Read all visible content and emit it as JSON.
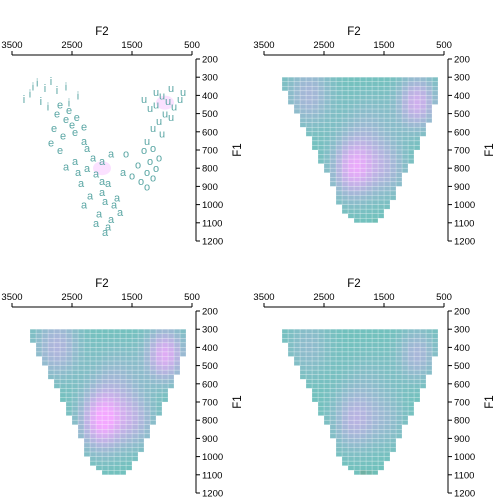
{
  "chart_data": {
    "type": "scatter",
    "layout": "2x2 grid",
    "x_axis": {
      "label": "F2",
      "position": "top",
      "reversed": true,
      "range": [
        3500,
        500
      ],
      "ticks": [
        3500,
        2500,
        1500,
        500
      ]
    },
    "y_axis": {
      "label": "F1",
      "position": "right",
      "reversed": true,
      "range": [
        1200,
        200
      ],
      "ticks": [
        200,
        300,
        400,
        500,
        600,
        700,
        800,
        900,
        1000,
        1100,
        1200
      ]
    },
    "colors": {
      "points": "#5aa6a4",
      "base_fill": "#6fc2bc",
      "edge_fill": "#6f9b86",
      "peak_fill": "#f3a8ff",
      "grid": "#ffffff"
    },
    "scatter_points": [
      {
        "label": "i",
        "x": 3080,
        "y": 330
      },
      {
        "label": "i",
        "x": 2950,
        "y": 360
      },
      {
        "label": "i",
        "x": 3200,
        "y": 390
      },
      {
        "label": "i",
        "x": 2850,
        "y": 320
      },
      {
        "label": "i",
        "x": 2750,
        "y": 370
      },
      {
        "label": "i",
        "x": 3020,
        "y": 430
      },
      {
        "label": "i",
        "x": 2600,
        "y": 350
      },
      {
        "label": "i",
        "x": 2400,
        "y": 400
      },
      {
        "label": "i",
        "x": 3300,
        "y": 420
      },
      {
        "label": "i",
        "x": 2900,
        "y": 460
      },
      {
        "label": "i",
        "x": 2550,
        "y": 440
      },
      {
        "label": "i",
        "x": 3150,
        "y": 350
      },
      {
        "label": "e",
        "x": 2750,
        "y": 500
      },
      {
        "label": "e",
        "x": 2600,
        "y": 530
      },
      {
        "label": "e",
        "x": 2800,
        "y": 580
      },
      {
        "label": "e",
        "x": 2500,
        "y": 560
      },
      {
        "label": "e",
        "x": 2700,
        "y": 450
      },
      {
        "label": "e",
        "x": 2450,
        "y": 600
      },
      {
        "label": "e",
        "x": 2650,
        "y": 620
      },
      {
        "label": "e",
        "x": 2550,
        "y": 480
      },
      {
        "label": "e",
        "x": 2850,
        "y": 660
      },
      {
        "label": "e",
        "x": 2300,
        "y": 570
      },
      {
        "label": "e",
        "x": 2420,
        "y": 520
      },
      {
        "label": "e",
        "x": 2700,
        "y": 700
      },
      {
        "label": "a",
        "x": 2250,
        "y": 800
      },
      {
        "label": "a",
        "x": 2100,
        "y": 830
      },
      {
        "label": "a",
        "x": 2350,
        "y": 880
      },
      {
        "label": "a",
        "x": 2000,
        "y": 870
      },
      {
        "label": "a",
        "x": 2200,
        "y": 950
      },
      {
        "label": "a",
        "x": 1950,
        "y": 980
      },
      {
        "label": "a",
        "x": 1800,
        "y": 1000
      },
      {
        "label": "a",
        "x": 2050,
        "y": 1050
      },
      {
        "label": "a",
        "x": 1850,
        "y": 1080
      },
      {
        "label": "a",
        "x": 1900,
        "y": 1120
      },
      {
        "label": "a",
        "x": 2400,
        "y": 820
      },
      {
        "label": "a",
        "x": 2150,
        "y": 740
      },
      {
        "label": "a",
        "x": 1700,
        "y": 1040
      },
      {
        "label": "a",
        "x": 2300,
        "y": 1000
      },
      {
        "label": "a",
        "x": 2000,
        "y": 930
      },
      {
        "label": "a",
        "x": 2100,
        "y": 1100
      },
      {
        "label": "a",
        "x": 1750,
        "y": 960
      },
      {
        "label": "a",
        "x": 2450,
        "y": 760
      },
      {
        "label": "a",
        "x": 2600,
        "y": 790
      },
      {
        "label": "a",
        "x": 2250,
        "y": 690
      },
      {
        "label": "a",
        "x": 2000,
        "y": 760
      },
      {
        "label": "a",
        "x": 1900,
        "y": 880
      },
      {
        "label": "a",
        "x": 1850,
        "y": 720
      },
      {
        "label": "a",
        "x": 1650,
        "y": 820
      },
      {
        "label": "a",
        "x": 2300,
        "y": 650
      },
      {
        "label": "a",
        "x": 1950,
        "y": 1150
      },
      {
        "label": "o",
        "x": 1300,
        "y": 700
      },
      {
        "label": "o",
        "x": 1200,
        "y": 760
      },
      {
        "label": "o",
        "x": 1250,
        "y": 820
      },
      {
        "label": "o",
        "x": 1100,
        "y": 800
      },
      {
        "label": "o",
        "x": 1350,
        "y": 870
      },
      {
        "label": "o",
        "x": 1150,
        "y": 690
      },
      {
        "label": "o",
        "x": 1050,
        "y": 740
      },
      {
        "label": "o",
        "x": 1400,
        "y": 780
      },
      {
        "label": "o",
        "x": 1250,
        "y": 900
      },
      {
        "label": "o",
        "x": 1500,
        "y": 840
      },
      {
        "label": "o",
        "x": 1150,
        "y": 850
      },
      {
        "label": "o",
        "x": 1600,
        "y": 720
      },
      {
        "label": "u",
        "x": 1000,
        "y": 400
      },
      {
        "label": "u",
        "x": 900,
        "y": 430
      },
      {
        "label": "u",
        "x": 1100,
        "y": 380
      },
      {
        "label": "u",
        "x": 800,
        "y": 460
      },
      {
        "label": "u",
        "x": 950,
        "y": 500
      },
      {
        "label": "u",
        "x": 1200,
        "y": 470
      },
      {
        "label": "u",
        "x": 850,
        "y": 360
      },
      {
        "label": "u",
        "x": 1050,
        "y": 540
      },
      {
        "label": "u",
        "x": 700,
        "y": 420
      },
      {
        "label": "u",
        "x": 1150,
        "y": 580
      },
      {
        "label": "u",
        "x": 1000,
        "y": 610
      },
      {
        "label": "u",
        "x": 850,
        "y": 520
      },
      {
        "label": "u",
        "x": 1300,
        "y": 420
      },
      {
        "label": "u",
        "x": 650,
        "y": 380
      },
      {
        "label": "u",
        "x": 1250,
        "y": 650
      },
      {
        "label": "u",
        "x": 1100,
        "y": 450
      }
    ],
    "density_peaks": [
      {
        "x": 2000,
        "y": 800,
        "s": 160,
        "w": 1.0
      },
      {
        "x": 950,
        "y": 440,
        "s": 140,
        "w": 0.85
      },
      {
        "x": 2750,
        "y": 400,
        "s": 170,
        "w": 0.5
      },
      {
        "x": 1450,
        "y": 800,
        "s": 150,
        "w": 0.45
      },
      {
        "x": 1750,
        "y": 580,
        "s": 200,
        "w": 0.3
      }
    ],
    "panels": [
      {
        "id": "top-left",
        "mode": "scatter",
        "peak_gain": 0
      },
      {
        "id": "top-right",
        "mode": "density",
        "peak_gain": 1.0
      },
      {
        "id": "bottom-left",
        "mode": "density",
        "peak_gain": 1.15
      },
      {
        "id": "bottom-right",
        "mode": "density",
        "peak_gain": 0.6
      }
    ]
  }
}
